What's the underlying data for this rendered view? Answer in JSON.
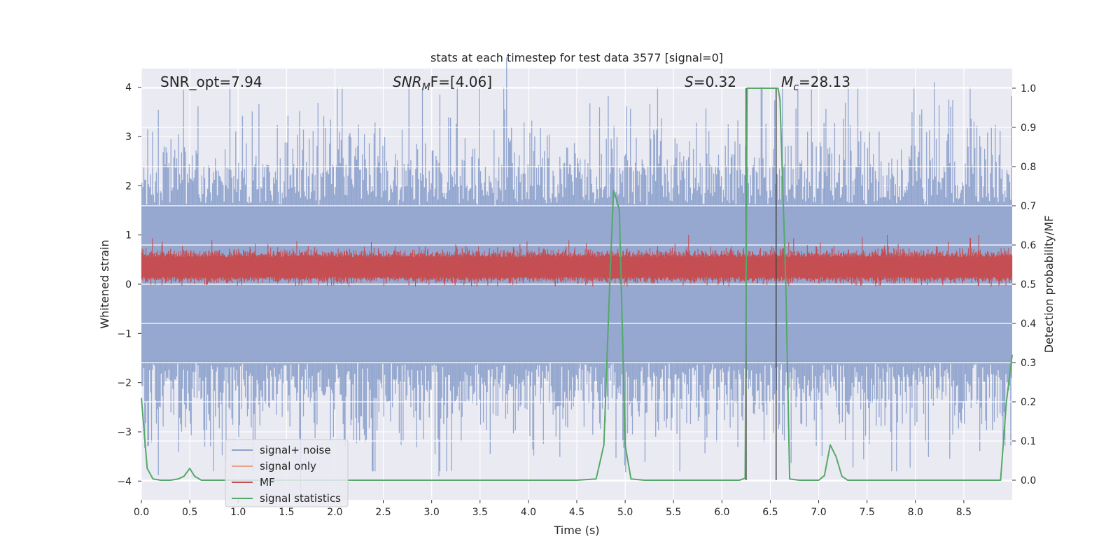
{
  "chart_data": {
    "type": "line",
    "title": "stats at each timestep for test data 3577 [signal=0]",
    "xlabel": "Time (s)",
    "ylabel_left": "Whitened strain",
    "ylabel_right": "Detection probability/MF",
    "xlim": [
      0.0,
      9.0
    ],
    "ylim_left": [
      -4.38,
      4.38
    ],
    "ylim_right": [
      -0.05,
      1.05
    ],
    "x_ticks": [
      "0.0",
      "0.5",
      "1.0",
      "1.5",
      "2.0",
      "2.5",
      "3.0",
      "3.5",
      "4.0",
      "4.5",
      "5.0",
      "5.5",
      "6.0",
      "6.5",
      "7.0",
      "7.5",
      "8.0",
      "8.5"
    ],
    "y_ticks_left": [
      "4",
      "3",
      "2",
      "1",
      "0",
      "−1",
      "−2",
      "−3",
      "−4"
    ],
    "y_ticks_right": [
      "1.0",
      "0.9",
      "0.8",
      "0.7",
      "0.6",
      "0.5",
      "0.4",
      "0.3",
      "0.2",
      "0.1",
      "0.0"
    ],
    "grid": true,
    "legend_position": "lower-left",
    "annotations": {
      "snr_opt": "SNR_opt=7.94",
      "snr_mf_prefix": "SNR",
      "snr_mf_sub": "M",
      "snr_mf_suffix": "F=[4.06]",
      "s_label": "S",
      "s_value": "=0.32",
      "mc_prefix": "M",
      "mc_sub": "c",
      "mc_value": "=28.13"
    },
    "vertical_markers": [
      6.25,
      6.56
    ],
    "series": [
      {
        "name": "signal+ noise",
        "color": "#8ea2cc",
        "description_axis": "left",
        "envelope": {
          "band_low": -1.6,
          "band_high": 1.6,
          "peak_max": 4.0,
          "peak_min": -3.8
        }
      },
      {
        "name": "signal only",
        "color": "#e8a488",
        "description_axis": "left",
        "values": []
      },
      {
        "name": "MF",
        "color": "#c44e52",
        "description_axis": "left",
        "envelope": {
          "base_low": 0.05,
          "base_high": 0.65,
          "peak_max": 1.0
        }
      },
      {
        "name": "signal statistics",
        "color": "#55a868",
        "description_axis": "right",
        "x": [
          0.0,
          0.06,
          0.12,
          0.2,
          0.3,
          0.38,
          0.44,
          0.5,
          0.55,
          0.62,
          0.75,
          1.0,
          2.0,
          3.0,
          4.0,
          4.5,
          4.7,
          4.78,
          4.84,
          4.88,
          4.94,
          4.98,
          5.0,
          5.06,
          5.2,
          6.0,
          6.18,
          6.24,
          6.26,
          6.32,
          6.4,
          6.5,
          6.58,
          6.6,
          6.66,
          6.7,
          6.8,
          7.0,
          7.06,
          7.12,
          7.18,
          7.24,
          7.3,
          7.5,
          8.0,
          8.5,
          8.88,
          8.94,
          9.0
        ],
        "y": [
          0.21,
          0.03,
          0.003,
          0.0,
          0.0,
          0.003,
          0.01,
          0.03,
          0.01,
          0.0,
          0.0,
          0.0,
          0.0,
          0.0,
          0.0,
          0.0,
          0.003,
          0.09,
          0.5,
          0.74,
          0.69,
          0.3,
          0.09,
          0.003,
          0.0,
          0.0,
          0.0,
          0.005,
          1.0,
          1.0,
          1.0,
          1.0,
          1.0,
          0.97,
          0.5,
          0.003,
          0.0,
          0.0,
          0.012,
          0.09,
          0.06,
          0.01,
          0.0,
          0.0,
          0.0,
          0.0,
          0.0,
          0.2,
          0.32
        ]
      }
    ]
  }
}
